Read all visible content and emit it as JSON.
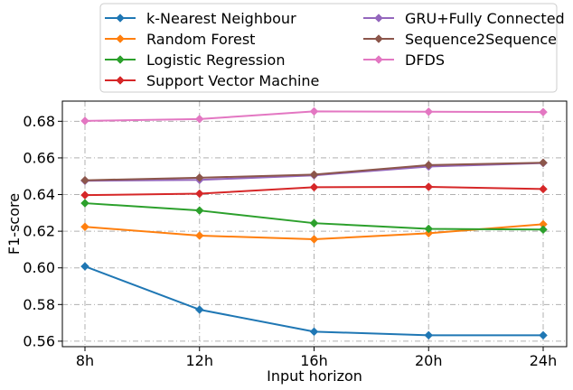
{
  "chart_data": {
    "type": "line",
    "title": "",
    "xlabel": "Input horizon",
    "ylabel": "F1-score",
    "categories": [
      "8h",
      "12h",
      "16h",
      "20h",
      "24h"
    ],
    "ylim": [
      0.557,
      0.691
    ],
    "yticks": [
      0.56,
      0.58,
      0.6,
      0.62,
      0.64,
      0.66,
      0.68
    ],
    "ytick_labels": [
      "0.56",
      "0.58",
      "0.60",
      "0.62",
      "0.64",
      "0.66",
      "0.68"
    ],
    "grid": true,
    "legend_position": "top-center",
    "legend_columns": 2,
    "series": [
      {
        "name": "k-Nearest Neighbour",
        "color": "#1f77b4",
        "values": [
          0.6008,
          0.5772,
          0.5652,
          0.5632,
          0.5632
        ]
      },
      {
        "name": "Random Forest",
        "color": "#ff7f0e",
        "values": [
          0.6224,
          0.6176,
          0.6156,
          0.6189,
          0.6238
        ]
      },
      {
        "name": "Logistic Regression",
        "color": "#2ca02c",
        "values": [
          0.6353,
          0.6313,
          0.6244,
          0.6213,
          0.6209
        ]
      },
      {
        "name": "Support Vector Machine",
        "color": "#d62728",
        "values": [
          0.6397,
          0.6405,
          0.644,
          0.6442,
          0.643
        ]
      },
      {
        "name": "GRU+Fully Connected",
        "color": "#9467bd",
        "values": [
          0.6475,
          0.648,
          0.6505,
          0.6553,
          0.6572
        ]
      },
      {
        "name": "Sequence2Sequence",
        "color": "#8c564b",
        "values": [
          0.6478,
          0.6492,
          0.6509,
          0.6561,
          0.6574
        ]
      },
      {
        "name": "DFDS",
        "color": "#e377c2",
        "values": [
          0.6802,
          0.6812,
          0.6854,
          0.6852,
          0.685
        ]
      }
    ]
  }
}
